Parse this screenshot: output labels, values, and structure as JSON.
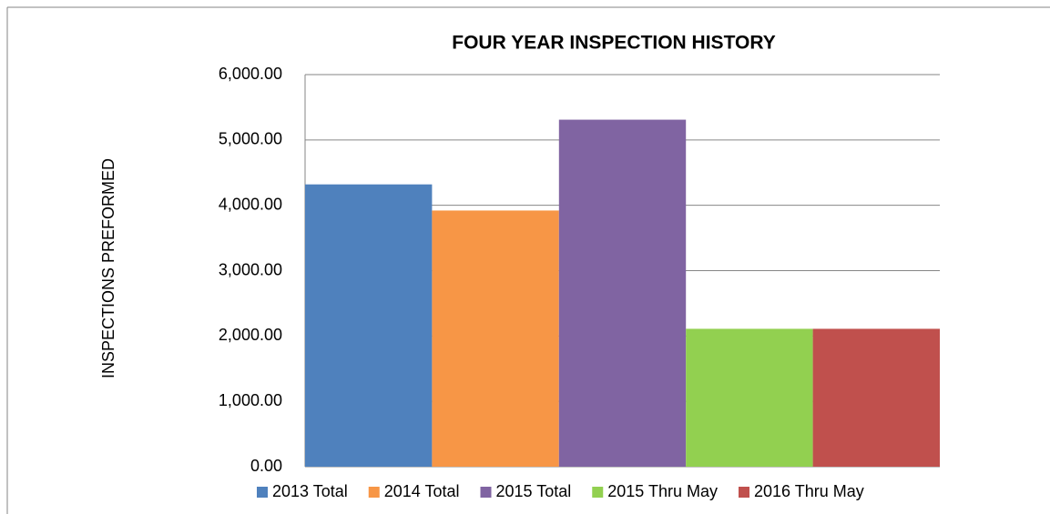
{
  "chart_data": {
    "type": "bar",
    "title": "FOUR YEAR INSPECTION HISTORY",
    "y_label": "INSPECTIONS PREFORMED",
    "series": [
      {
        "name": "2013 Total",
        "color": "#4f81bd",
        "values": [
          4320
        ]
      },
      {
        "name": "2014 Total",
        "color": "#f79646",
        "values": [
          3920
        ]
      },
      {
        "name": "2015 Total",
        "color": "#8064a2",
        "values": [
          5310
        ]
      },
      {
        "name": "2015 Thru May",
        "color": "#92d050",
        "values": [
          2110
        ]
      },
      {
        "name": "2016 Thru May",
        "color": "#c0504d",
        "values": [
          2110
        ]
      }
    ],
    "ylim": [
      0,
      6000
    ],
    "yticks": [
      {
        "value": 0,
        "label": "0.00"
      },
      {
        "value": 1000,
        "label": "1,000.00"
      },
      {
        "value": 2000,
        "label": "2,000.00"
      },
      {
        "value": 3000,
        "label": "3,000.00"
      },
      {
        "value": 4000,
        "label": "4,000.00"
      },
      {
        "value": 5000,
        "label": "5,000.00"
      },
      {
        "value": 6000,
        "label": "6,000.00"
      }
    ],
    "grid": true,
    "legend": "bottom"
  }
}
